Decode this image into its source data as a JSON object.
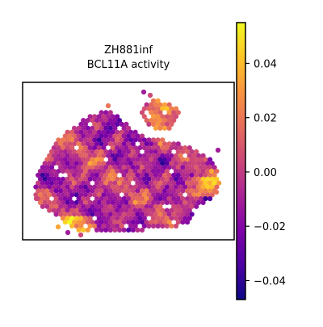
{
  "chart_data": {
    "type": "heatmap",
    "subtype": "spatial-hex-spots",
    "title_line1": "ZH881inf",
    "title_line2": "BCL11A activity",
    "xlabel": "",
    "ylabel": "",
    "colormap": "plasma",
    "color_range": [
      -0.047,
      0.055
    ],
    "colorbar": {
      "ticks": [
        -0.04,
        -0.02,
        0.0,
        0.02,
        0.04
      ],
      "tick_labels": [
        "−0.04",
        "−0.02",
        "0.00",
        "0.02",
        "0.04"
      ]
    },
    "grid": false,
    "legend": "colorbar-right"
  }
}
